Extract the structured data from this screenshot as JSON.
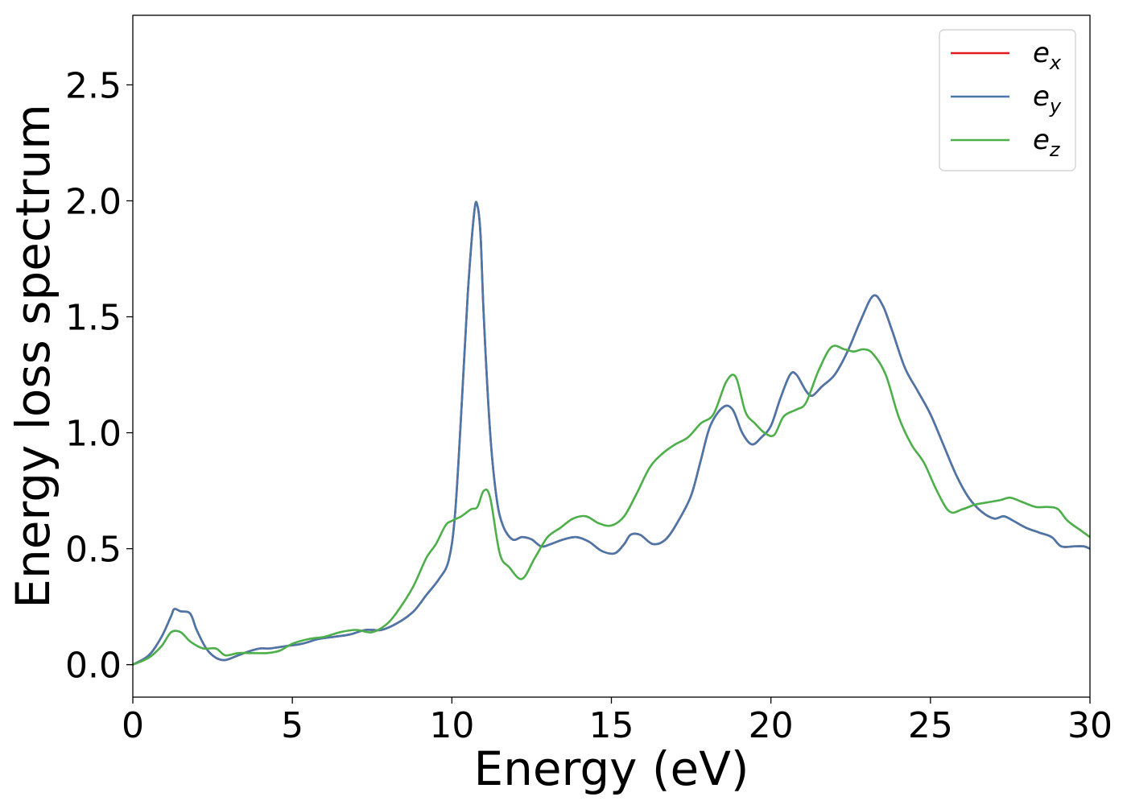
{
  "chart_data": {
    "type": "line",
    "xlabel": "Energy (eV)",
    "ylabel": "Energy loss spectrum",
    "xlim": [
      0,
      30
    ],
    "ylim": [
      -0.14,
      2.8
    ],
    "xticks": [
      0,
      5,
      10,
      15,
      20,
      25,
      30
    ],
    "xtick_labels": [
      "0",
      "5",
      "10",
      "15",
      "20",
      "25",
      "30"
    ],
    "yticks": [
      0.0,
      0.5,
      1.0,
      1.5,
      2.0,
      2.5
    ],
    "ytick_labels": [
      "0.0",
      "0.5",
      "1.0",
      "1.5",
      "2.0",
      "2.5"
    ],
    "grid": false,
    "legend_position": "top-right",
    "series": [
      {
        "name": "x",
        "color": "#e41a1c",
        "x": [
          0,
          0.5,
          0.9,
          1.2,
          1.3,
          1.5,
          1.8,
          2.0,
          2.3,
          2.6,
          2.9,
          3.3,
          3.7,
          4.0,
          4.3,
          4.8,
          5.3,
          5.8,
          6.3,
          6.8,
          7.3,
          7.8,
          8.3,
          8.8,
          9.2,
          9.6,
          9.9,
          10.1,
          10.3,
          10.5,
          10.7,
          10.8,
          10.9,
          11.0,
          11.2,
          11.4,
          11.6,
          11.9,
          12.2,
          12.5,
          12.8,
          13.1,
          13.5,
          13.9,
          14.3,
          14.7,
          15.1,
          15.4,
          15.6,
          15.9,
          16.3,
          16.7,
          17.1,
          17.5,
          17.8,
          18.1,
          18.5,
          18.8,
          19.1,
          19.4,
          19.7,
          20.0,
          20.3,
          20.6,
          20.8,
          21.1,
          21.3,
          21.6,
          22.0,
          22.4,
          22.8,
          23.2,
          23.5,
          23.8,
          24.2,
          24.6,
          25.0,
          25.4,
          25.8,
          26.2,
          26.6,
          27.0,
          27.3,
          27.6,
          28.0,
          28.4,
          28.8,
          29.1,
          29.5,
          29.8,
          30.0
        ],
        "values": [
          0.0,
          0.04,
          0.12,
          0.21,
          0.24,
          0.23,
          0.22,
          0.15,
          0.07,
          0.03,
          0.02,
          0.04,
          0.06,
          0.07,
          0.07,
          0.08,
          0.09,
          0.11,
          0.12,
          0.13,
          0.15,
          0.15,
          0.18,
          0.23,
          0.3,
          0.37,
          0.45,
          0.65,
          1.1,
          1.6,
          1.95,
          1.98,
          1.85,
          1.5,
          1.0,
          0.72,
          0.6,
          0.54,
          0.55,
          0.54,
          0.51,
          0.52,
          0.54,
          0.55,
          0.53,
          0.49,
          0.48,
          0.52,
          0.56,
          0.56,
          0.52,
          0.54,
          0.62,
          0.73,
          0.88,
          1.03,
          1.11,
          1.1,
          1.0,
          0.95,
          0.98,
          1.03,
          1.15,
          1.25,
          1.25,
          1.18,
          1.16,
          1.2,
          1.25,
          1.35,
          1.48,
          1.59,
          1.55,
          1.44,
          1.28,
          1.18,
          1.08,
          0.95,
          0.82,
          0.72,
          0.66,
          0.63,
          0.64,
          0.62,
          0.59,
          0.57,
          0.55,
          0.51,
          0.51,
          0.51,
          0.5
        ]
      },
      {
        "name": "y",
        "color": "#4a77aa",
        "x": [
          0,
          0.5,
          0.9,
          1.2,
          1.3,
          1.5,
          1.8,
          2.0,
          2.3,
          2.6,
          2.9,
          3.3,
          3.7,
          4.0,
          4.3,
          4.8,
          5.3,
          5.8,
          6.3,
          6.8,
          7.3,
          7.8,
          8.3,
          8.8,
          9.2,
          9.6,
          9.9,
          10.1,
          10.3,
          10.5,
          10.7,
          10.8,
          10.9,
          11.0,
          11.2,
          11.4,
          11.6,
          11.9,
          12.2,
          12.5,
          12.8,
          13.1,
          13.5,
          13.9,
          14.3,
          14.7,
          15.1,
          15.4,
          15.6,
          15.9,
          16.3,
          16.7,
          17.1,
          17.5,
          17.8,
          18.1,
          18.5,
          18.8,
          19.1,
          19.4,
          19.7,
          20.0,
          20.3,
          20.6,
          20.8,
          21.1,
          21.3,
          21.6,
          22.0,
          22.4,
          22.8,
          23.2,
          23.5,
          23.8,
          24.2,
          24.6,
          25.0,
          25.4,
          25.8,
          26.2,
          26.6,
          27.0,
          27.3,
          27.6,
          28.0,
          28.4,
          28.8,
          29.1,
          29.5,
          29.8,
          30.0
        ],
        "values": [
          0.0,
          0.04,
          0.12,
          0.21,
          0.24,
          0.23,
          0.22,
          0.15,
          0.07,
          0.03,
          0.02,
          0.04,
          0.06,
          0.07,
          0.07,
          0.08,
          0.09,
          0.11,
          0.12,
          0.13,
          0.15,
          0.15,
          0.18,
          0.23,
          0.3,
          0.37,
          0.45,
          0.65,
          1.1,
          1.6,
          1.95,
          1.98,
          1.85,
          1.5,
          1.0,
          0.72,
          0.6,
          0.54,
          0.55,
          0.54,
          0.51,
          0.52,
          0.54,
          0.55,
          0.53,
          0.49,
          0.48,
          0.52,
          0.56,
          0.56,
          0.52,
          0.54,
          0.62,
          0.73,
          0.88,
          1.03,
          1.11,
          1.1,
          1.0,
          0.95,
          0.98,
          1.03,
          1.15,
          1.25,
          1.25,
          1.18,
          1.16,
          1.2,
          1.25,
          1.35,
          1.48,
          1.59,
          1.55,
          1.44,
          1.28,
          1.18,
          1.08,
          0.95,
          0.82,
          0.72,
          0.66,
          0.63,
          0.64,
          0.62,
          0.59,
          0.57,
          0.55,
          0.51,
          0.51,
          0.51,
          0.5
        ]
      },
      {
        "name": "z",
        "color": "#4daf4a",
        "x": [
          0,
          0.5,
          0.9,
          1.2,
          1.5,
          1.8,
          2.2,
          2.6,
          2.9,
          3.3,
          3.7,
          4.2,
          4.6,
          5.0,
          5.5,
          6.0,
          6.5,
          7.0,
          7.5,
          8.0,
          8.4,
          8.8,
          9.2,
          9.5,
          9.8,
          10.0,
          10.3,
          10.6,
          10.8,
          11.0,
          11.2,
          11.5,
          11.8,
          12.2,
          12.6,
          13.0,
          13.4,
          13.8,
          14.2,
          14.6,
          15.0,
          15.4,
          15.8,
          16.2,
          16.6,
          17.0,
          17.4,
          17.8,
          18.2,
          18.6,
          18.9,
          19.2,
          19.5,
          19.8,
          20.1,
          20.4,
          20.8,
          21.1,
          21.5,
          21.9,
          22.3,
          22.6,
          22.9,
          23.2,
          23.6,
          24.0,
          24.4,
          24.8,
          25.2,
          25.6,
          26.0,
          26.4,
          26.8,
          27.2,
          27.5,
          27.9,
          28.3,
          28.7,
          29.0,
          29.3,
          29.7,
          30.0
        ],
        "values": [
          0.0,
          0.03,
          0.08,
          0.14,
          0.14,
          0.1,
          0.07,
          0.07,
          0.04,
          0.05,
          0.05,
          0.05,
          0.06,
          0.09,
          0.11,
          0.12,
          0.14,
          0.15,
          0.14,
          0.18,
          0.25,
          0.34,
          0.46,
          0.52,
          0.6,
          0.62,
          0.64,
          0.67,
          0.68,
          0.75,
          0.72,
          0.48,
          0.42,
          0.37,
          0.46,
          0.55,
          0.59,
          0.63,
          0.64,
          0.61,
          0.6,
          0.64,
          0.74,
          0.85,
          0.91,
          0.95,
          0.98,
          1.04,
          1.08,
          1.22,
          1.24,
          1.09,
          1.04,
          1.0,
          0.99,
          1.07,
          1.1,
          1.13,
          1.27,
          1.37,
          1.36,
          1.35,
          1.36,
          1.34,
          1.25,
          1.07,
          0.95,
          0.87,
          0.75,
          0.66,
          0.67,
          0.69,
          0.7,
          0.71,
          0.72,
          0.7,
          0.68,
          0.68,
          0.67,
          0.62,
          0.58,
          0.55
        ]
      }
    ]
  }
}
